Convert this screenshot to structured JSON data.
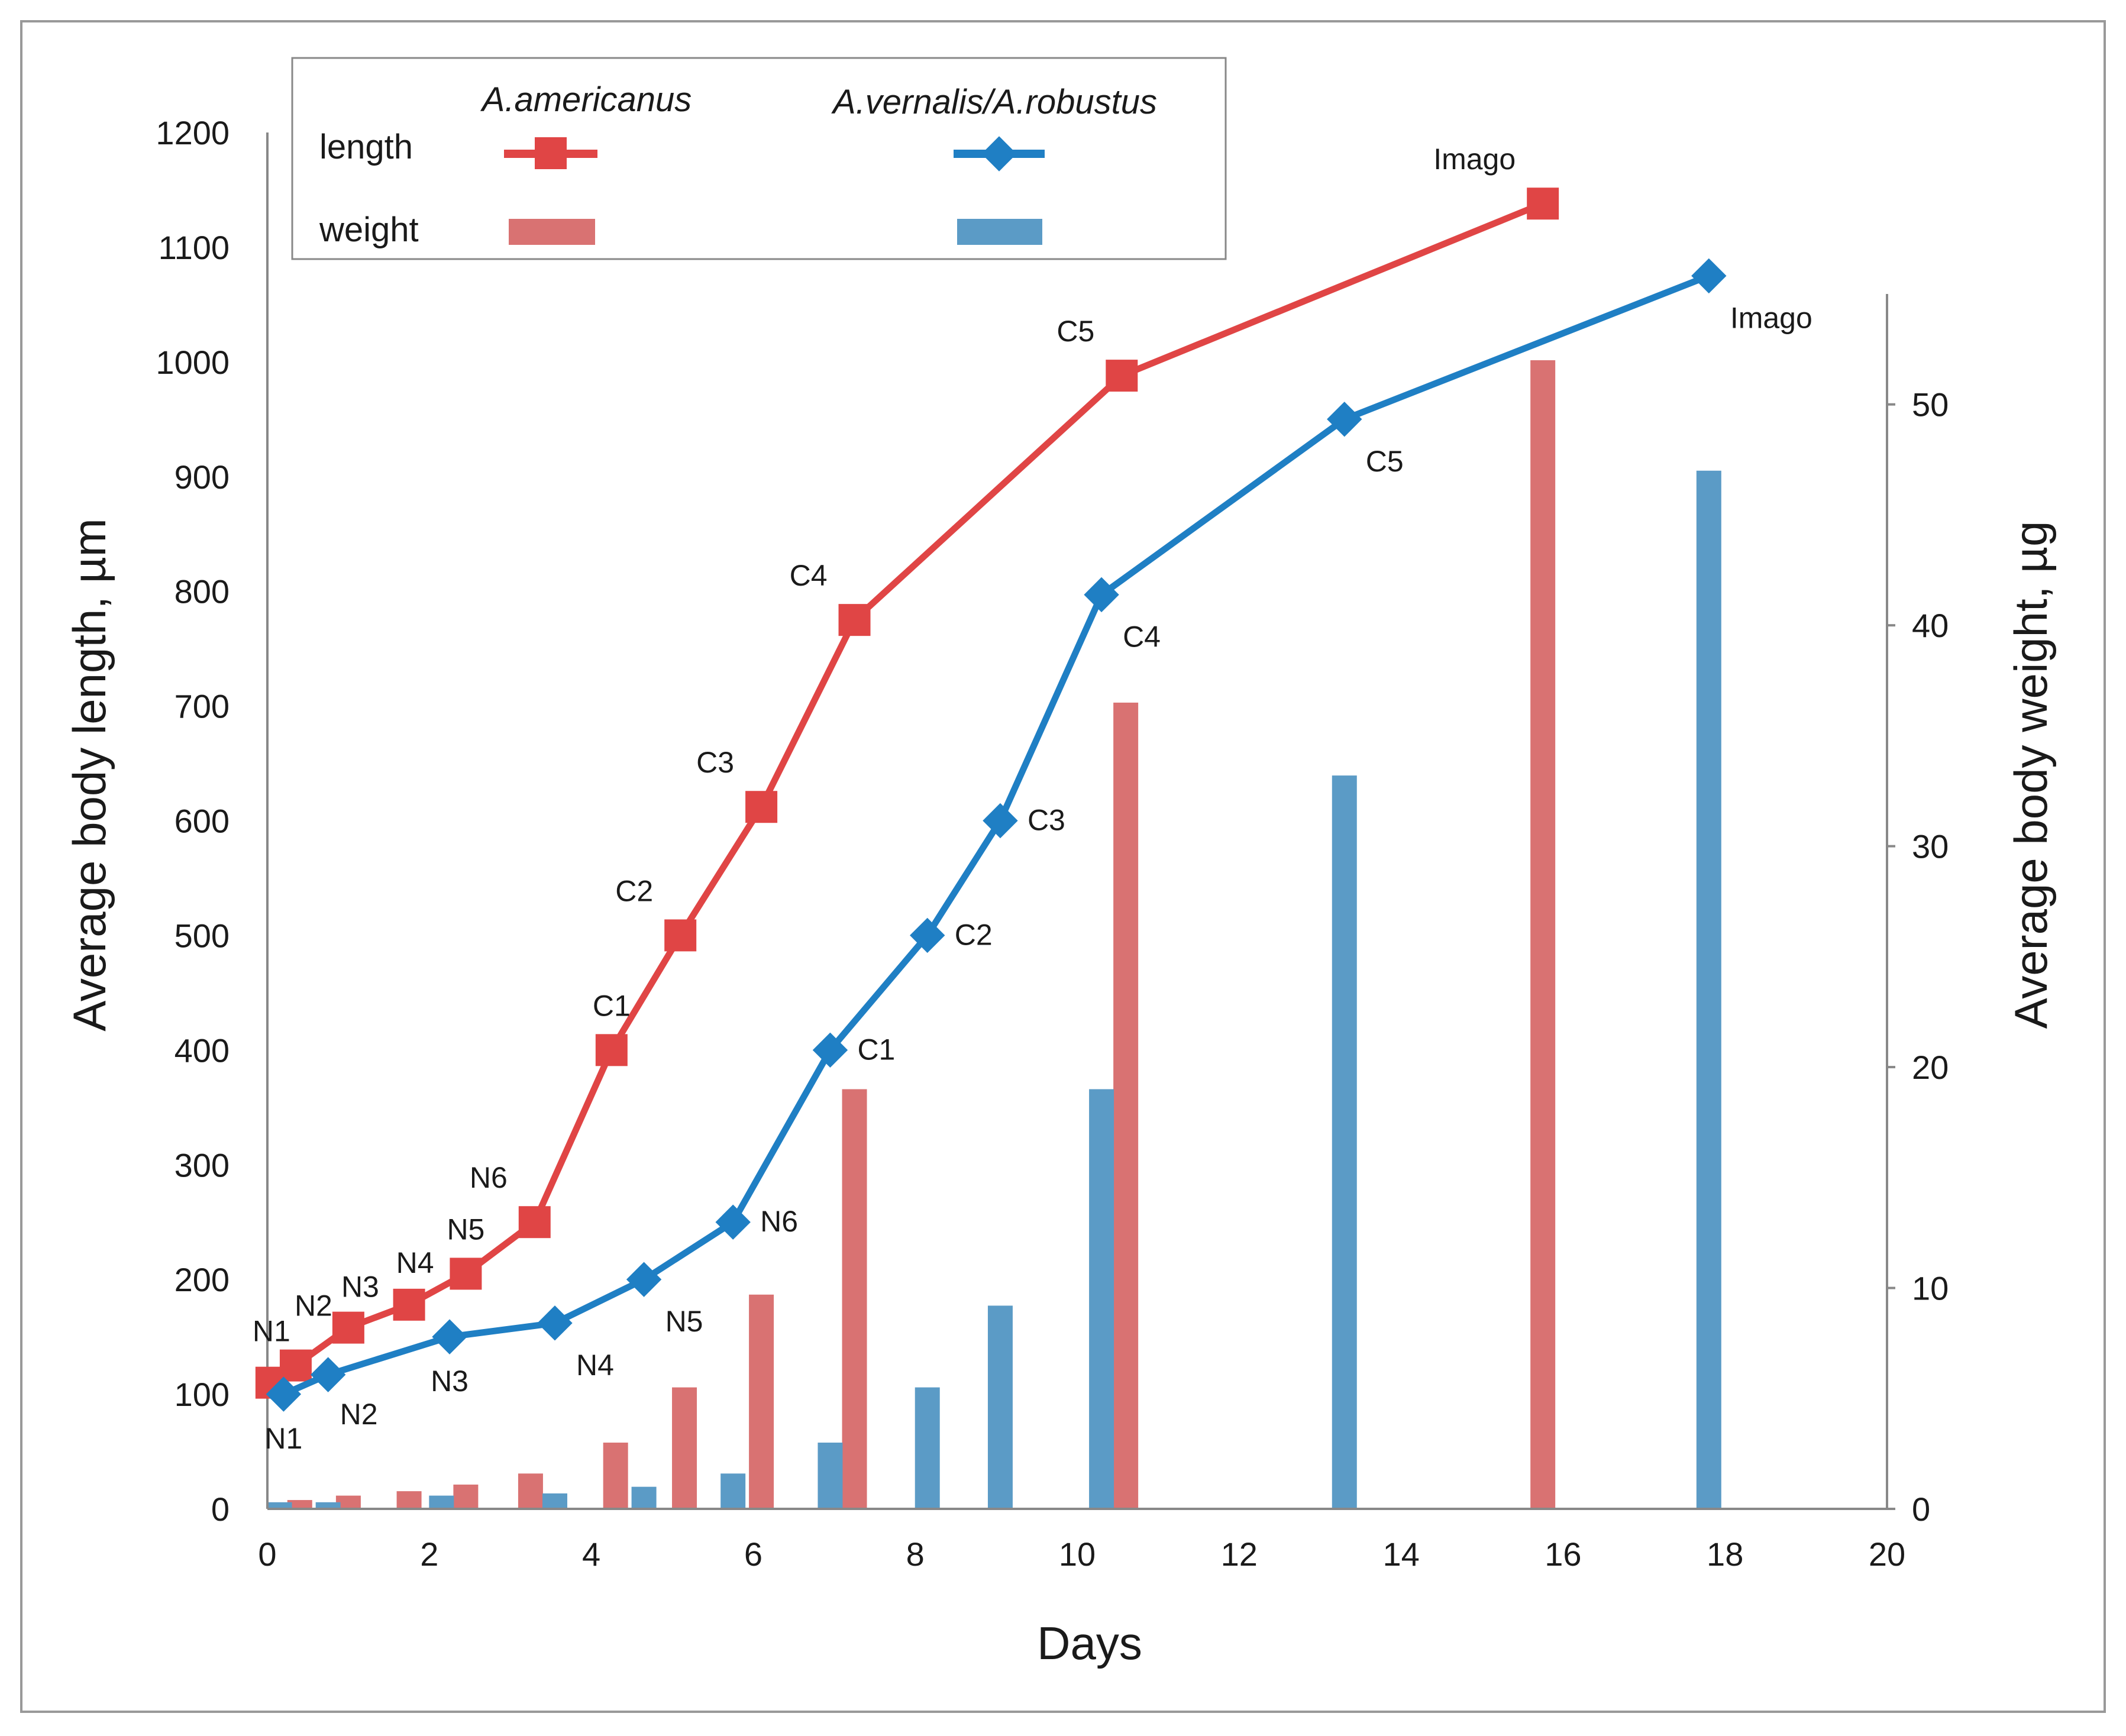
{
  "colors": {
    "americanus_line": "#e04545",
    "americanus_bar": "#d97272",
    "vernalis_line": "#1f7fc4",
    "vernalis_bar": "#5b9bc6",
    "axis": "#888888",
    "frame": "#999999"
  },
  "legend": {
    "species_1": "A.americanus",
    "species_2": "A.vernalis/A.robustus",
    "length_label": "length",
    "weight_label": "weight",
    "placement": "top-left"
  },
  "chart_data": {
    "type": "line+bar",
    "xlabel": "Days",
    "ylabel": "Average body length, µm",
    "y2label": "Average body weight, µg",
    "xlim": [
      0,
      20
    ],
    "ylim": [
      0,
      1200
    ],
    "y2lim": [
      0,
      55
    ],
    "x_ticks": [
      "0",
      "2",
      "4",
      "6",
      "8",
      "10",
      "12",
      "14",
      "16",
      "18",
      "20"
    ],
    "y_ticks": [
      "0",
      "100",
      "200",
      "300",
      "400",
      "500",
      "600",
      "700",
      "800",
      "900",
      "1000",
      "1100",
      "1200"
    ],
    "y2_ticks": [
      "0",
      "10",
      "20",
      "30",
      "40",
      "50"
    ],
    "grid": false,
    "length_series": [
      {
        "name": "A.americanus",
        "marker": "square",
        "points": [
          {
            "x": 0.05,
            "y": 110,
            "label": "N1",
            "pos": "above"
          },
          {
            "x": 0.35,
            "y": 125,
            "label": "N2",
            "pos": "above"
          },
          {
            "x": 1.0,
            "y": 158,
            "label": "N3",
            "pos": "above"
          },
          {
            "x": 1.75,
            "y": 178,
            "label": "N4",
            "pos": "above"
          },
          {
            "x": 2.45,
            "y": 205,
            "label": "N5",
            "pos": "above"
          },
          {
            "x": 3.3,
            "y": 250,
            "label": "N6",
            "pos": "above-left"
          },
          {
            "x": 4.25,
            "y": 400,
            "label": "C1",
            "pos": "above"
          },
          {
            "x": 5.1,
            "y": 500,
            "label": "C2",
            "pos": "above-left"
          },
          {
            "x": 6.1,
            "y": 612,
            "label": "C3",
            "pos": "above-left"
          },
          {
            "x": 7.25,
            "y": 775,
            "label": "C4",
            "pos": "above-left"
          },
          {
            "x": 10.55,
            "y": 988,
            "label": "C5",
            "pos": "above-left"
          },
          {
            "x": 15.75,
            "y": 1138,
            "label": "Imago",
            "pos": "above-left"
          }
        ]
      },
      {
        "name": "A.vernalis/A.robustus",
        "marker": "diamond",
        "points": [
          {
            "x": 0.2,
            "y": 100,
            "label": "N1",
            "pos": "below"
          },
          {
            "x": 0.75,
            "y": 117,
            "label": "N2",
            "pos": "below-right"
          },
          {
            "x": 2.25,
            "y": 150,
            "label": "N3",
            "pos": "below"
          },
          {
            "x": 3.55,
            "y": 162,
            "label": "N4",
            "pos": "below-right"
          },
          {
            "x": 4.65,
            "y": 200,
            "label": "N5",
            "pos": "below-right"
          },
          {
            "x": 5.75,
            "y": 250,
            "label": "N6",
            "pos": "right"
          },
          {
            "x": 6.95,
            "y": 400,
            "label": "C1",
            "pos": "right"
          },
          {
            "x": 8.15,
            "y": 500,
            "label": "C2",
            "pos": "right"
          },
          {
            "x": 9.05,
            "y": 600,
            "label": "C3",
            "pos": "right"
          },
          {
            "x": 10.3,
            "y": 797,
            "label": "C4",
            "pos": "below-right"
          },
          {
            "x": 13.3,
            "y": 950,
            "label": "C5",
            "pos": "below-right"
          },
          {
            "x": 17.8,
            "y": 1075,
            "label": "Imago",
            "pos": "below-right"
          }
        ]
      }
    ],
    "weight_series": [
      {
        "name": "A.americanus",
        "points": [
          {
            "x": 0.4,
            "y": 0.4
          },
          {
            "x": 1.0,
            "y": 0.6
          },
          {
            "x": 1.75,
            "y": 0.8
          },
          {
            "x": 2.45,
            "y": 1.1
          },
          {
            "x": 3.25,
            "y": 1.6
          },
          {
            "x": 4.3,
            "y": 3.0
          },
          {
            "x": 5.15,
            "y": 5.5
          },
          {
            "x": 6.1,
            "y": 9.7
          },
          {
            "x": 7.25,
            "y": 19.0
          },
          {
            "x": 10.6,
            "y": 36.5
          },
          {
            "x": 15.75,
            "y": 52.0
          }
        ]
      },
      {
        "name": "A.vernalis/A.robustus",
        "points": [
          {
            "x": 0.15,
            "y": 0.3
          },
          {
            "x": 0.75,
            "y": 0.3
          },
          {
            "x": 2.15,
            "y": 0.6
          },
          {
            "x": 3.55,
            "y": 0.7
          },
          {
            "x": 4.65,
            "y": 1.0
          },
          {
            "x": 5.75,
            "y": 1.6
          },
          {
            "x": 6.95,
            "y": 3.0
          },
          {
            "x": 8.15,
            "y": 5.5
          },
          {
            "x": 9.05,
            "y": 9.2
          },
          {
            "x": 10.3,
            "y": 19.0
          },
          {
            "x": 13.3,
            "y": 33.2
          },
          {
            "x": 17.8,
            "y": 47.0
          }
        ]
      }
    ]
  }
}
